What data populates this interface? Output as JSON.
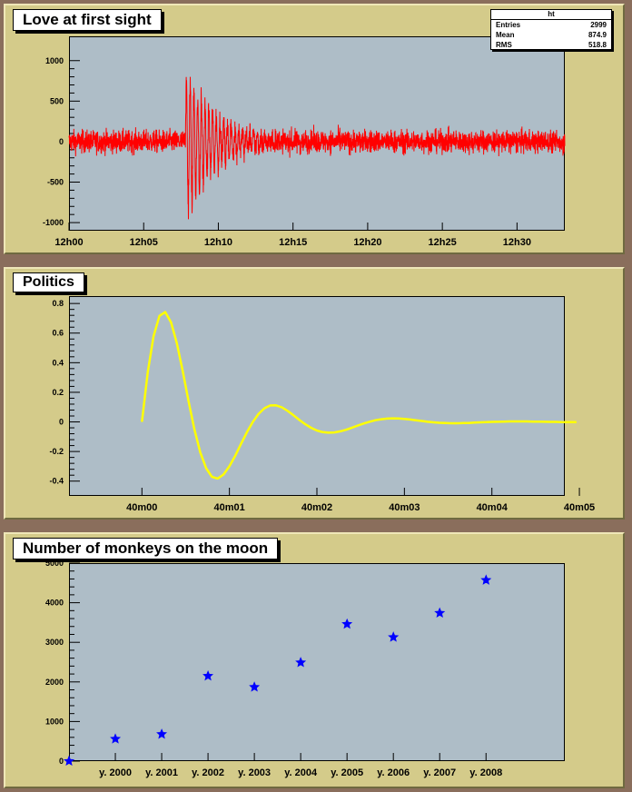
{
  "colors": {
    "frame": "#8a6e5c",
    "pad": "#d4cb8a",
    "plot_bg": "#aebdc7",
    "line1": "#ff0000",
    "line2": "#ffff00",
    "markers": "#0000ff"
  },
  "panels": [
    {
      "title": "Love at first sight"
    },
    {
      "title": "Politics"
    },
    {
      "title": "Number of monkeys on the moon"
    }
  ],
  "stats": {
    "name": "ht",
    "rows": [
      {
        "label": "Entries",
        "value": "2999"
      },
      {
        "label": "Mean",
        "value": "874.9"
      },
      {
        "label": "RMS",
        "value": "518.8"
      }
    ]
  },
  "chart_data": [
    {
      "type": "line",
      "title": "Love at first sight",
      "series_color": "#ff0000",
      "x_unit": "minutes",
      "xlim": [
        0,
        33.2
      ],
      "ylim": [
        -1100,
        1300
      ],
      "x_ticks": [
        {
          "v": 0,
          "label": "12h00"
        },
        {
          "v": 5,
          "label": "12h05"
        },
        {
          "v": 10,
          "label": "12h10"
        },
        {
          "v": 15,
          "label": "12h15"
        },
        {
          "v": 20,
          "label": "12h20"
        },
        {
          "v": 25,
          "label": "12h25"
        },
        {
          "v": 30,
          "label": "12h30"
        }
      ],
      "y_ticks": [
        {
          "v": -1000,
          "label": "-1000"
        },
        {
          "v": -500,
          "label": "-500"
        },
        {
          "v": 0,
          "label": "0"
        },
        {
          "v": 500,
          "label": "500"
        },
        {
          "v": 1000,
          "label": "1000"
        }
      ],
      "n_points": 2999,
      "noise_amplitude": 180,
      "burst": {
        "start": 7.8,
        "peak": 1130,
        "trough": -1010,
        "decay_minutes": 4.5,
        "period_minutes": 0.25
      },
      "grid": false
    },
    {
      "type": "line",
      "title": "Politics",
      "series_color": "#ffff00",
      "x_unit": "seconds",
      "xlim": [
        -50,
        290
      ],
      "ylim": [
        -0.5,
        0.85
      ],
      "x_ticks": [
        {
          "v": 0,
          "label": "40m00"
        },
        {
          "v": 60,
          "label": "40m01"
        },
        {
          "v": 120,
          "label": "40m02"
        },
        {
          "v": 180,
          "label": "40m03"
        },
        {
          "v": 240,
          "label": "40m04"
        },
        {
          "v": 300,
          "label": "40m05"
        }
      ],
      "y_ticks": [
        {
          "v": -0.4,
          "label": "-0.4"
        },
        {
          "v": -0.2,
          "label": "-0.2"
        },
        {
          "v": 0,
          "label": "0"
        },
        {
          "v": 0.2,
          "label": "0.2"
        },
        {
          "v": 0.4,
          "label": "0.4"
        },
        {
          "v": 0.6,
          "label": "0.6"
        },
        {
          "v": 0.8,
          "label": "0.8"
        }
      ],
      "x": [
        0,
        4,
        8,
        12,
        16,
        20,
        24,
        28,
        32,
        36,
        40,
        44,
        48,
        52,
        56,
        60,
        64,
        68,
        72,
        76,
        80,
        84,
        88,
        92,
        96,
        100,
        104,
        108,
        112,
        116,
        120,
        124,
        128,
        132,
        136,
        140,
        144,
        148,
        152,
        156,
        160,
        164,
        168,
        172,
        176,
        180,
        184,
        188,
        192,
        196,
        200,
        204,
        208,
        212,
        216,
        220,
        224,
        228,
        232,
        236,
        240,
        244,
        248,
        252,
        256,
        260,
        264,
        268,
        272,
        276,
        280,
        284,
        288,
        292,
        296,
        298
      ],
      "y": [
        0.0,
        0.335,
        0.579,
        0.716,
        0.742,
        0.672,
        0.53,
        0.341,
        0.138,
        -0.05,
        -0.205,
        -0.313,
        -0.371,
        -0.383,
        -0.355,
        -0.3,
        -0.228,
        -0.148,
        -0.07,
        -0.001,
        0.055,
        0.092,
        0.111,
        0.112,
        0.098,
        0.074,
        0.044,
        0.013,
        -0.016,
        -0.04,
        -0.058,
        -0.069,
        -0.073,
        -0.071,
        -0.064,
        -0.053,
        -0.039,
        -0.025,
        -0.011,
        0.001,
        0.011,
        0.018,
        0.022,
        0.024,
        0.023,
        0.02,
        0.016,
        0.011,
        0.006,
        0.001,
        -0.003,
        -0.006,
        -0.008,
        -0.009,
        -0.009,
        -0.008,
        -0.007,
        -0.005,
        -0.003,
        -0.001,
        0.0,
        0.001,
        0.002,
        0.003,
        0.003,
        0.003,
        0.003,
        0.002,
        0.002,
        0.001,
        0.0,
        0.0,
        -0.001,
        -0.001,
        -0.001,
        -0.001
      ],
      "grid": false
    },
    {
      "type": "scatter",
      "title": "Number of monkeys on the moon",
      "series_color": "#0000ff",
      "marker": "star",
      "xlim": [
        0,
        10.7
      ],
      "ylim": [
        0,
        5000
      ],
      "x_ticks": [
        {
          "v": 1,
          "label": "y. 2000"
        },
        {
          "v": 2,
          "label": "y. 2001"
        },
        {
          "v": 3,
          "label": "y. 2002"
        },
        {
          "v": 4,
          "label": "y. 2003"
        },
        {
          "v": 5,
          "label": "y. 2004"
        },
        {
          "v": 6,
          "label": "y. 2005"
        },
        {
          "v": 7,
          "label": "y. 2006"
        },
        {
          "v": 8,
          "label": "y. 2007"
        },
        {
          "v": 9,
          "label": "y. 2008"
        }
      ],
      "y_ticks": [
        {
          "v": 0,
          "label": "0"
        },
        {
          "v": 1000,
          "label": "1000"
        },
        {
          "v": 2000,
          "label": "2000"
        },
        {
          "v": 3000,
          "label": "3000"
        },
        {
          "v": 4000,
          "label": "4000"
        },
        {
          "v": 5000,
          "label": "5000"
        }
      ],
      "x": [
        0,
        1,
        2,
        3,
        4,
        5,
        6,
        7,
        8,
        9
      ],
      "y": [
        0,
        560,
        680,
        2150,
        1870,
        2490,
        3460,
        3130,
        3740,
        4570
      ],
      "grid": false
    }
  ]
}
